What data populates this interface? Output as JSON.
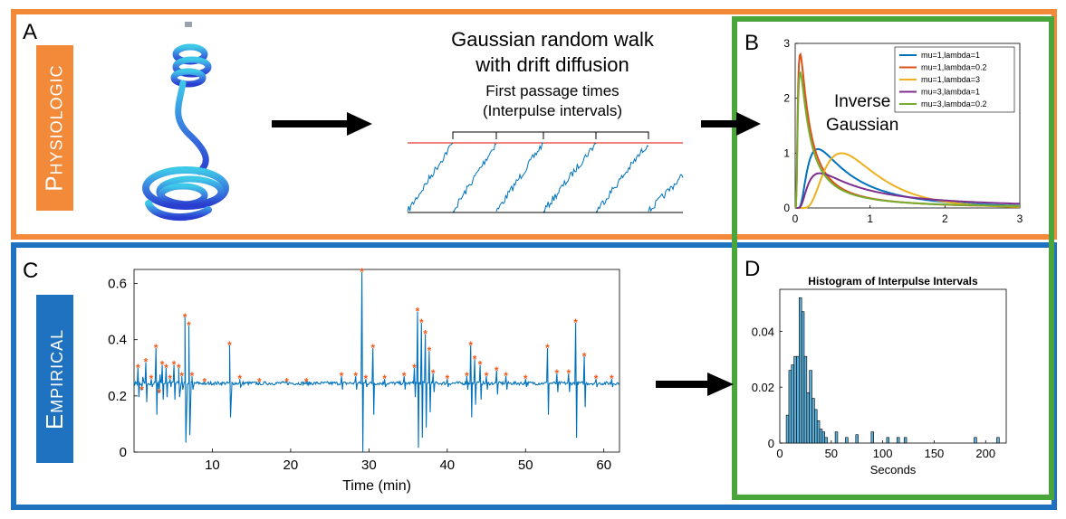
{
  "panels": {
    "a": {
      "letter": "A",
      "label": "Physiologic"
    },
    "b": {
      "letter": "B",
      "annotation_line1": "Inverse",
      "annotation_line2": "Gaussian"
    },
    "c": {
      "letter": "C",
      "label": "Empirical"
    },
    "d": {
      "letter": "D"
    }
  },
  "walk": {
    "title_line1": "Gaussian random walk",
    "title_line2": "with drift diffusion",
    "subtitle_line1": "First passage times",
    "subtitle_line2": "(Interpulse intervals)"
  },
  "colors": {
    "orange_frame": "#f28a3a",
    "blue_frame": "#1f72c0",
    "green_frame": "#4aa63a",
    "physiologic_label_bg": "#f28a3a",
    "empirical_label_bg": "#1f72c0",
    "series_blue": "#0072bd",
    "marker_orange": "#f05a1a",
    "threshold_red": "#e8342a"
  },
  "chart_data": [
    {
      "id": "inverse-gaussian",
      "type": "line",
      "title": "",
      "xlabel": "",
      "ylabel": "",
      "xlim": [
        0,
        3
      ],
      "ylim": [
        0,
        3
      ],
      "xticks": [
        "0",
        "1",
        "2",
        "3"
      ],
      "yticks": [
        "0",
        "1",
        "2",
        "3"
      ],
      "legend_position": "top-right",
      "series": [
        {
          "name": "mu=1,lambda=1",
          "mu": 1,
          "lambda": 1,
          "color": "#0072bd"
        },
        {
          "name": "mu=1,lambda=0.2",
          "mu": 1,
          "lambda": 0.2,
          "color": "#d95319"
        },
        {
          "name": "mu=1,lambda=3",
          "mu": 1,
          "lambda": 3,
          "color": "#edb120"
        },
        {
          "name": "mu=3,lambda=1",
          "mu": 3,
          "lambda": 1,
          "color": "#7e2f8e"
        },
        {
          "name": "mu=3,lambda=0.2",
          "mu": 3,
          "lambda": 0.2,
          "color": "#77ac30"
        }
      ]
    },
    {
      "id": "time-series",
      "type": "line",
      "title": "",
      "xlabel": "Time (min)",
      "ylabel": "",
      "xlim": [
        0,
        62
      ],
      "ylim": [
        0,
        0.65
      ],
      "xticks": [
        "10",
        "20",
        "30",
        "40",
        "50",
        "60"
      ],
      "yticks": [
        "0",
        "0.2",
        "0.4",
        "0.6"
      ],
      "baseline": 0.245,
      "spikes": [
        {
          "x": 0.5,
          "y": 0.3
        },
        {
          "x": 1.0,
          "y": 0.22
        },
        {
          "x": 1.5,
          "y": 0.32
        },
        {
          "x": 2.2,
          "y": 0.26
        },
        {
          "x": 2.8,
          "y": 0.37
        },
        {
          "x": 3.2,
          "y": 0.21
        },
        {
          "x": 3.6,
          "y": 0.31
        },
        {
          "x": 4.1,
          "y": 0.3
        },
        {
          "x": 4.6,
          "y": 0.26
        },
        {
          "x": 5.1,
          "y": 0.31
        },
        {
          "x": 5.7,
          "y": 0.3
        },
        {
          "x": 6.1,
          "y": 0.27
        },
        {
          "x": 6.5,
          "y": 0.48
        },
        {
          "x": 7.0,
          "y": 0.45
        },
        {
          "x": 7.4,
          "y": 0.27
        },
        {
          "x": 9.0,
          "y": 0.25
        },
        {
          "x": 12.2,
          "y": 0.38
        },
        {
          "x": 13.5,
          "y": 0.26
        },
        {
          "x": 16.0,
          "y": 0.25
        },
        {
          "x": 19.5,
          "y": 0.25
        },
        {
          "x": 22.0,
          "y": 0.25
        },
        {
          "x": 26.5,
          "y": 0.27
        },
        {
          "x": 28.3,
          "y": 0.27
        },
        {
          "x": 29.1,
          "y": 0.64
        },
        {
          "x": 29.6,
          "y": 0.26
        },
        {
          "x": 30.5,
          "y": 0.37
        },
        {
          "x": 32.0,
          "y": 0.26
        },
        {
          "x": 34.5,
          "y": 0.27
        },
        {
          "x": 35.8,
          "y": 0.3
        },
        {
          "x": 36.2,
          "y": 0.5
        },
        {
          "x": 36.7,
          "y": 0.46
        },
        {
          "x": 37.2,
          "y": 0.42
        },
        {
          "x": 37.7,
          "y": 0.36
        },
        {
          "x": 38.2,
          "y": 0.28
        },
        {
          "x": 40.0,
          "y": 0.26
        },
        {
          "x": 42.5,
          "y": 0.27
        },
        {
          "x": 43.0,
          "y": 0.38
        },
        {
          "x": 43.5,
          "y": 0.33
        },
        {
          "x": 44.2,
          "y": 0.31
        },
        {
          "x": 45.0,
          "y": 0.27
        },
        {
          "x": 46.3,
          "y": 0.29
        },
        {
          "x": 47.5,
          "y": 0.27
        },
        {
          "x": 50.0,
          "y": 0.26
        },
        {
          "x": 52.8,
          "y": 0.37
        },
        {
          "x": 54.0,
          "y": 0.28
        },
        {
          "x": 55.5,
          "y": 0.28
        },
        {
          "x": 56.4,
          "y": 0.46
        },
        {
          "x": 57.5,
          "y": 0.34
        },
        {
          "x": 59.0,
          "y": 0.26
        },
        {
          "x": 61.0,
          "y": 0.26
        }
      ]
    },
    {
      "id": "histogram",
      "type": "bar",
      "title": "Histogram of Interpulse Intervals",
      "xlabel": "Seconds",
      "ylabel": "",
      "xlim": [
        0,
        220
      ],
      "ylim": [
        0,
        0.055
      ],
      "xticks": [
        "0",
        "50",
        "100",
        "150",
        "200"
      ],
      "yticks": [
        "0",
        "0.02",
        "0.04"
      ],
      "bin_width": 2.5,
      "bins": [
        {
          "x": 7.5,
          "y": 0.01
        },
        {
          "x": 10,
          "y": 0.026
        },
        {
          "x": 12.5,
          "y": 0.028
        },
        {
          "x": 15,
          "y": 0.031
        },
        {
          "x": 17.5,
          "y": 0.031
        },
        {
          "x": 20,
          "y": 0.052
        },
        {
          "x": 22.5,
          "y": 0.047
        },
        {
          "x": 25,
          "y": 0.031
        },
        {
          "x": 27.5,
          "y": 0.018
        },
        {
          "x": 30,
          "y": 0.026
        },
        {
          "x": 32.5,
          "y": 0.016
        },
        {
          "x": 35,
          "y": 0.012
        },
        {
          "x": 37.5,
          "y": 0.008
        },
        {
          "x": 40,
          "y": 0.005
        },
        {
          "x": 42.5,
          "y": 0.004
        },
        {
          "x": 45,
          "y": 0.002
        },
        {
          "x": 55,
          "y": 0.004
        },
        {
          "x": 65,
          "y": 0.002
        },
        {
          "x": 75,
          "y": 0.003
        },
        {
          "x": 90,
          "y": 0.004
        },
        {
          "x": 105,
          "y": 0.002
        },
        {
          "x": 115,
          "y": 0.002
        },
        {
          "x": 122,
          "y": 0.002
        },
        {
          "x": 190,
          "y": 0.002
        },
        {
          "x": 212,
          "y": 0.002
        }
      ]
    }
  ]
}
